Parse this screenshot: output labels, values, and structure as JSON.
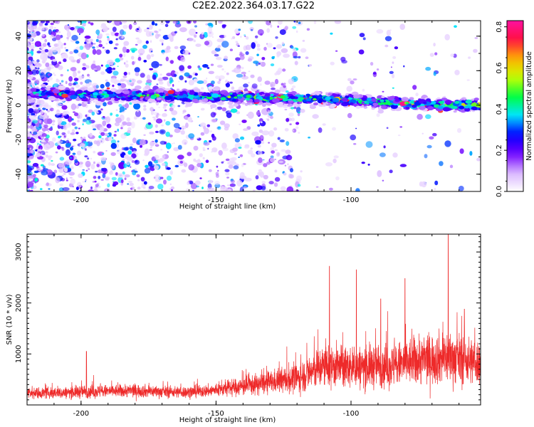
{
  "title": "C2E2.2022.364.03.17.G22",
  "chart_data": [
    {
      "type": "heatmap",
      "xlabel": "Height of straight line (km)",
      "ylabel": "Frequency (Hz)",
      "xlim": [
        -220,
        -52
      ],
      "ylim": [
        -50,
        49
      ],
      "xticks": [
        -200,
        -150,
        -100
      ],
      "yticks": [
        -40,
        -20,
        0,
        20,
        40
      ],
      "colorbar": {
        "label": "Normalized spectral amplitude",
        "range": [
          0,
          0.83
        ],
        "ticks": [
          0.0,
          0.2,
          0.4,
          0.6,
          0.8
        ],
        "colors": [
          "#ffffff",
          "#d8b4ff",
          "#7000ff",
          "#0000ff",
          "#00e5ff",
          "#00ff40",
          "#c8ff00",
          "#ffb000",
          "#ff1040",
          "#ff10a0"
        ]
      },
      "ridge": {
        "description_free": true,
        "center_freq_points": [
          [
            -220,
            7
          ],
          [
            -200,
            6
          ],
          [
            -150,
            5
          ],
          [
            -120,
            4
          ],
          [
            -100,
            3
          ],
          [
            -80,
            1
          ],
          [
            -60,
            0
          ],
          [
            -52,
            0
          ]
        ]
      }
    },
    {
      "type": "line",
      "xlabel": "Height of straight line (km)",
      "ylabel": "SNR (10 * v/v)",
      "xlim": [
        -220,
        -52
      ],
      "ylim": [
        0,
        3350
      ],
      "xticks": [
        -200,
        -150,
        -100
      ],
      "yticks": [
        1000,
        2000,
        3000
      ],
      "color": "#ee2a2a",
      "envelope": {
        "x": [
          -220,
          -205,
          -200,
          -190,
          -180,
          -170,
          -160,
          -152,
          -145,
          -135,
          -128,
          -120,
          -115,
          -110,
          -105,
          -100,
          -95,
          -90,
          -85,
          -80,
          -75,
          -70,
          -65,
          -60,
          -55,
          -52
        ],
        "mean": [
          230,
          240,
          260,
          270,
          280,
          260,
          250,
          280,
          330,
          400,
          460,
          520,
          640,
          760,
          760,
          720,
          740,
          780,
          760,
          820,
          880,
          900,
          940,
          900,
          860,
          830
        ],
        "spread": [
          120,
          130,
          150,
          140,
          150,
          130,
          130,
          140,
          180,
          230,
          260,
          320,
          400,
          480,
          480,
          460,
          480,
          500,
          480,
          520,
          560,
          560,
          600,
          560,
          520,
          500
        ]
      },
      "peaks": [
        [
          -198,
          1050
        ],
        [
          -108,
          2720
        ],
        [
          -98,
          2650
        ],
        [
          -89,
          2080
        ],
        [
          -80,
          2480
        ],
        [
          -64,
          3350
        ],
        [
          -58,
          1880
        ]
      ]
    }
  ]
}
